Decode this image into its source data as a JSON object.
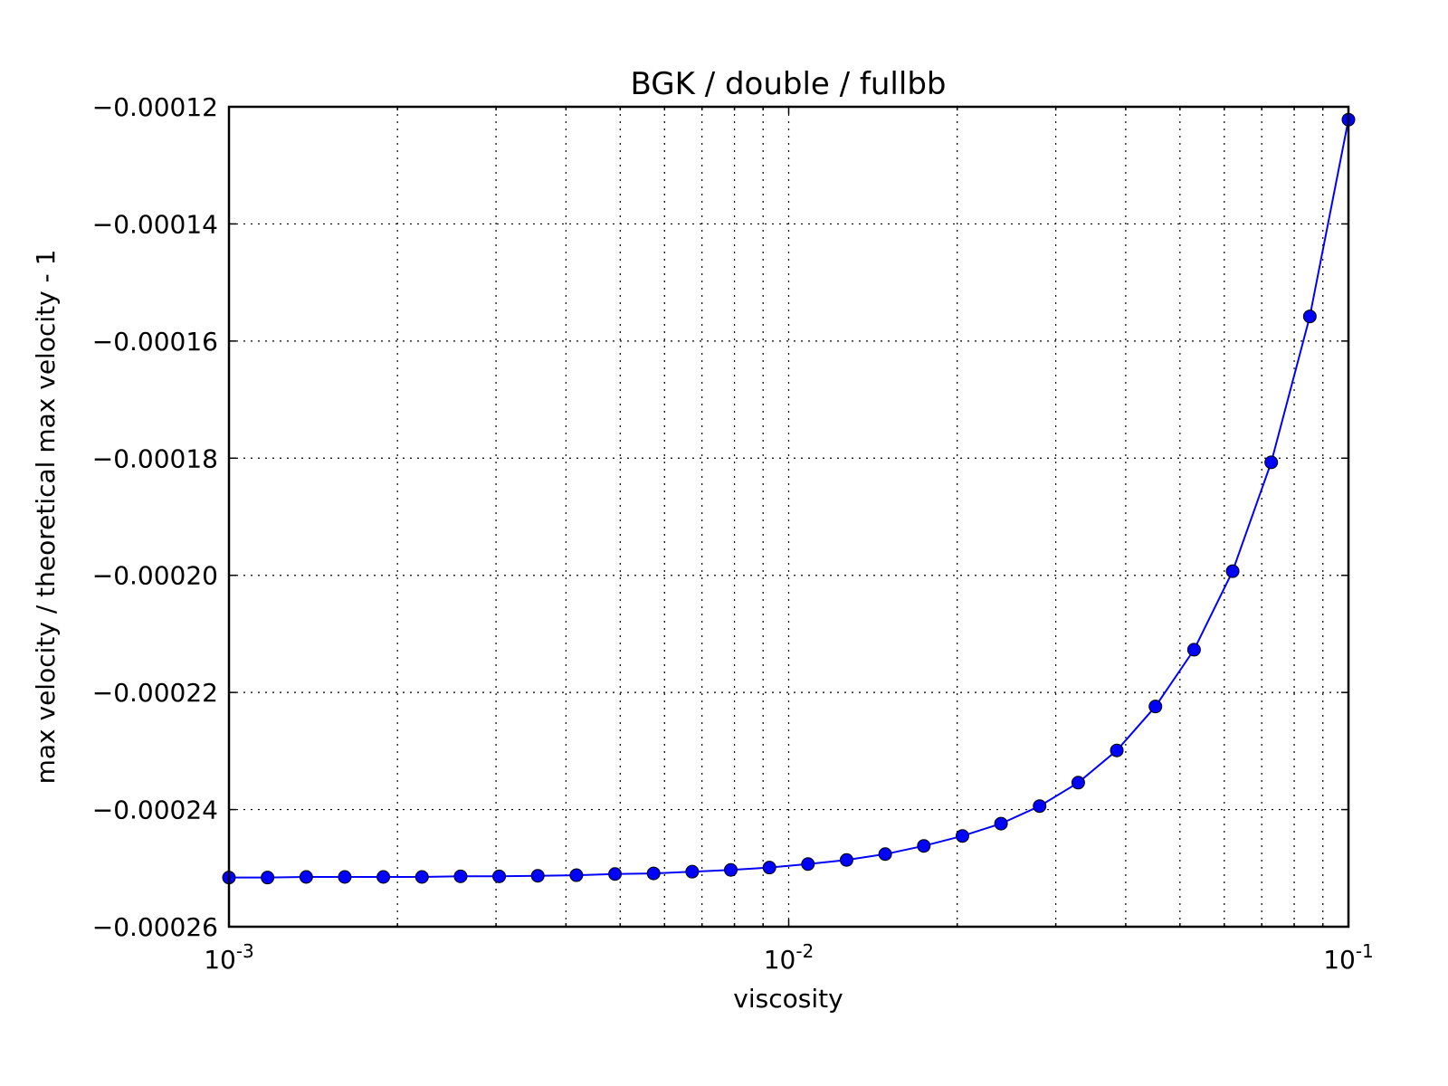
{
  "chart_data": {
    "type": "line",
    "title": "BGK / double / fullbb",
    "xlabel": "viscosity",
    "ylabel": "max velocity / theoretical max velocity - 1",
    "xscale": "log",
    "xlim": [
      0.001,
      0.1
    ],
    "ylim": [
      -0.00026,
      -0.00012
    ],
    "x_ticks": [
      {
        "value": 0.001,
        "base": "10",
        "exp": "-3"
      },
      {
        "value": 0.01,
        "base": "10",
        "exp": "-2"
      },
      {
        "value": 0.1,
        "base": "10",
        "exp": "-1"
      }
    ],
    "y_ticks": [
      {
        "value": -0.00012,
        "label": "−0.00012"
      },
      {
        "value": -0.00014,
        "label": "−0.00014"
      },
      {
        "value": -0.00016,
        "label": "−0.00016"
      },
      {
        "value": -0.00018,
        "label": "−0.00018"
      },
      {
        "value": -0.0002,
        "label": "−0.00020"
      },
      {
        "value": -0.00022,
        "label": "−0.00022"
      },
      {
        "value": -0.00024,
        "label": "−0.00024"
      },
      {
        "value": -0.00026,
        "label": "−0.00026"
      }
    ],
    "grid": true,
    "series": [
      {
        "line_color": "#0000ff",
        "marker_color": "#0000ff",
        "marker": "circle",
        "x": [
          0.001,
          0.001172,
          0.001374,
          0.00161,
          0.001887,
          0.002212,
          0.002593,
          0.003039,
          0.003562,
          0.004175,
          0.004894,
          0.005736,
          0.006723,
          0.00788,
          0.009237,
          0.010826,
          0.012689,
          0.014874,
          0.017433,
          0.020434,
          0.02395,
          0.028072,
          0.032903,
          0.038566,
          0.045204,
          0.052983,
          0.062102,
          0.07279,
          0.085317,
          0.1
        ],
        "y": [
          -0.0002516,
          -0.0002516,
          -0.0002515,
          -0.0002515,
          -0.0002515,
          -0.0002515,
          -0.0002514,
          -0.0002514,
          -0.0002513,
          -0.0002512,
          -0.000251,
          -0.0002509,
          -0.0002506,
          -0.0002503,
          -0.0002499,
          -0.0002493,
          -0.0002486,
          -0.0002476,
          -0.0002462,
          -0.0002445,
          -0.0002424,
          -0.0002394,
          -0.0002354,
          -0.0002299,
          -0.0002224,
          -0.0002127,
          -0.0001993,
          -0.0001807,
          -0.0001558,
          -0.0001222
        ]
      }
    ]
  }
}
